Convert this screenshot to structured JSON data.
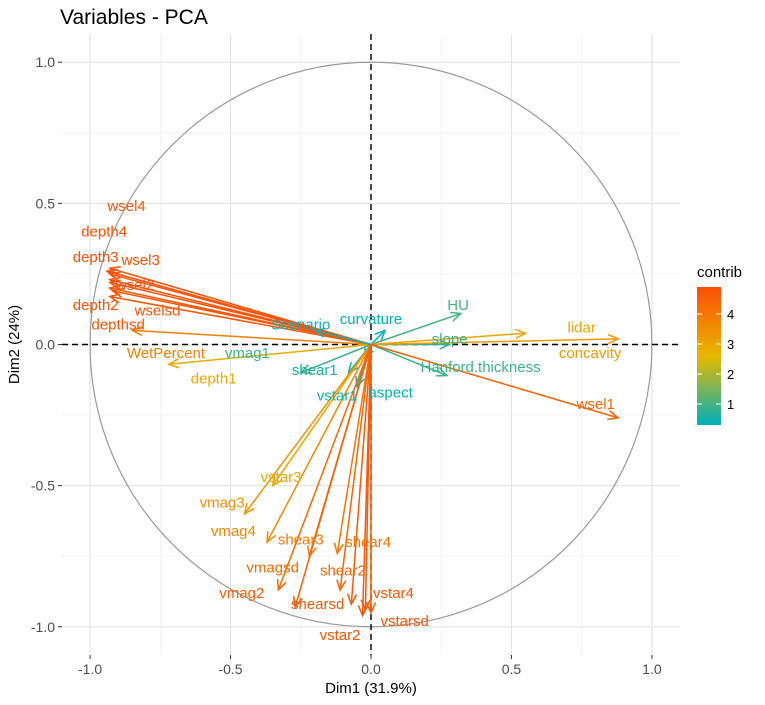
{
  "chart_data": {
    "type": "pca-variable-correlation-circle",
    "title": "Variables - PCA",
    "xlabel": "Dim1 (31.9%)",
    "ylabel": "Dim2 (24%)",
    "xlim": [
      -1.1,
      1.1
    ],
    "ylim": [
      -1.1,
      1.1
    ],
    "xticks": [
      {
        "value": -1.0,
        "label": "-1.0"
      },
      {
        "value": -0.5,
        "label": "-0.5"
      },
      {
        "value": 0.0,
        "label": "0.0"
      },
      {
        "value": 0.5,
        "label": "0.5"
      },
      {
        "value": 1.0,
        "label": "1.0"
      }
    ],
    "yticks": [
      {
        "value": 1.0,
        "label": "1.0"
      },
      {
        "value": 0.5,
        "label": "0.5"
      },
      {
        "value": 0.0,
        "label": "0.0"
      },
      {
        "value": -0.5,
        "label": "-0.5"
      },
      {
        "value": -1.0,
        "label": "-1.0"
      }
    ],
    "grid": true,
    "legend": {
      "title": "contrib",
      "position": "right",
      "range": [
        0.3,
        4.9
      ],
      "ticks": [
        {
          "value": 4,
          "label": "4"
        },
        {
          "value": 3,
          "label": "3"
        },
        {
          "value": 2,
          "label": "2"
        },
        {
          "value": 1,
          "label": "1"
        }
      ],
      "colors": {
        "low": "#00AFBB",
        "mid": "#E7B800",
        "high": "#FC4E07"
      }
    },
    "variables": [
      {
        "name": "wsel4",
        "x": -0.93,
        "y": 0.27,
        "contrib": 4.8,
        "label_x": -0.87,
        "label_y": 0.49
      },
      {
        "name": "depth4",
        "x": -0.93,
        "y": 0.25,
        "contrib": 4.8,
        "label_x": -0.95,
        "label_y": 0.4
      },
      {
        "name": "depth3",
        "x": -0.94,
        "y": 0.26,
        "contrib": 4.85,
        "label_x": -0.98,
        "label_y": 0.31
      },
      {
        "name": "wsel3",
        "x": -0.93,
        "y": 0.23,
        "contrib": 4.8,
        "label_x": -0.82,
        "label_y": 0.3
      },
      {
        "name": "wsel2",
        "x": -0.93,
        "y": 0.22,
        "contrib": 4.8,
        "label_x": -0.84,
        "label_y": 0.21
      },
      {
        "name": "depth2",
        "x": -0.93,
        "y": 0.2,
        "contrib": 4.75,
        "label_x": -0.98,
        "label_y": 0.14
      },
      {
        "name": "wselsd",
        "x": -0.92,
        "y": 0.19,
        "contrib": 4.7,
        "label_x": -0.76,
        "label_y": 0.12
      },
      {
        "name": "depthsd",
        "x": -0.93,
        "y": 0.17,
        "contrib": 4.7,
        "label_x": -0.9,
        "label_y": 0.07
      },
      {
        "name": "WetPercent",
        "x": -0.85,
        "y": 0.05,
        "contrib": 3.8,
        "label_x": -0.73,
        "label_y": -0.03
      },
      {
        "name": "depth1",
        "x": -0.72,
        "y": -0.07,
        "contrib": 2.9,
        "label_x": -0.56,
        "label_y": -0.12
      },
      {
        "name": "vmag1",
        "x": -0.25,
        "y": -0.1,
        "contrib": 0.9,
        "label_x": -0.44,
        "label_y": -0.03
      },
      {
        "name": "Scenario",
        "x": -0.2,
        "y": 0.05,
        "contrib": 0.5,
        "label_x": -0.25,
        "label_y": 0.07
      },
      {
        "name": "shear1",
        "x": -0.08,
        "y": -0.1,
        "contrib": 0.5,
        "label_x": -0.2,
        "label_y": -0.09
      },
      {
        "name": "vstar1",
        "x": -0.05,
        "y": -0.15,
        "contrib": 0.5,
        "label_x": -0.12,
        "label_y": -0.18
      },
      {
        "name": "curvature",
        "x": 0.05,
        "y": 0.05,
        "contrib": 0.3,
        "label_x": 0.0,
        "label_y": 0.09
      },
      {
        "name": "aspect",
        "x": -0.02,
        "y": -0.05,
        "contrib": 0.3,
        "label_x": 0.07,
        "label_y": -0.17
      },
      {
        "name": "HU",
        "x": 0.32,
        "y": 0.11,
        "contrib": 1.0,
        "label_x": 0.31,
        "label_y": 0.14
      },
      {
        "name": "slope",
        "x": 0.28,
        "y": 0.0,
        "contrib": 0.8,
        "label_x": 0.28,
        "label_y": 0.02
      },
      {
        "name": "Hanford.thickness",
        "x": 0.27,
        "y": -0.11,
        "contrib": 0.9,
        "label_x": 0.39,
        "label_y": -0.08
      },
      {
        "name": "lidar",
        "x": 0.55,
        "y": 0.04,
        "contrib": 3.0,
        "label_x": 0.75,
        "label_y": 0.06
      },
      {
        "name": "concavity",
        "x": 0.88,
        "y": 0.02,
        "contrib": 3.2,
        "label_x": 0.78,
        "label_y": -0.03
      },
      {
        "name": "wsel1",
        "x": 0.88,
        "y": -0.26,
        "contrib": 4.4,
        "label_x": 0.8,
        "label_y": -0.21
      },
      {
        "name": "vstar3",
        "x": -0.35,
        "y": -0.5,
        "contrib": 3.0,
        "label_x": -0.32,
        "label_y": -0.47
      },
      {
        "name": "vmag3",
        "x": -0.45,
        "y": -0.6,
        "contrib": 3.4,
        "label_x": -0.53,
        "label_y": -0.56
      },
      {
        "name": "vmag4",
        "x": -0.37,
        "y": -0.7,
        "contrib": 3.6,
        "label_x": -0.49,
        "label_y": -0.66
      },
      {
        "name": "shear3",
        "x": -0.22,
        "y": -0.75,
        "contrib": 3.9,
        "label_x": -0.25,
        "label_y": -0.69
      },
      {
        "name": "shear4",
        "x": -0.12,
        "y": -0.74,
        "contrib": 4.0,
        "label_x": -0.01,
        "label_y": -0.7
      },
      {
        "name": "vmagsd",
        "x": -0.33,
        "y": -0.87,
        "contrib": 4.3,
        "label_x": -0.35,
        "label_y": -0.79
      },
      {
        "name": "shear2",
        "x": -0.11,
        "y": -0.87,
        "contrib": 4.4,
        "label_x": -0.1,
        "label_y": -0.8
      },
      {
        "name": "vmag2",
        "x": -0.27,
        "y": -0.93,
        "contrib": 4.5,
        "label_x": -0.46,
        "label_y": -0.88
      },
      {
        "name": "shearsd",
        "x": -0.07,
        "y": -0.92,
        "contrib": 4.6,
        "label_x": -0.19,
        "label_y": -0.92
      },
      {
        "name": "vstar4",
        "x": -0.02,
        "y": -0.94,
        "contrib": 4.7,
        "label_x": 0.08,
        "label_y": -0.88
      },
      {
        "name": "vstarsd",
        "x": 0.0,
        "y": -0.95,
        "contrib": 4.7,
        "label_x": 0.12,
        "label_y": -0.98
      },
      {
        "name": "vstar2",
        "x": -0.03,
        "y": -0.96,
        "contrib": 4.7,
        "label_x": -0.11,
        "label_y": -1.03
      }
    ]
  }
}
